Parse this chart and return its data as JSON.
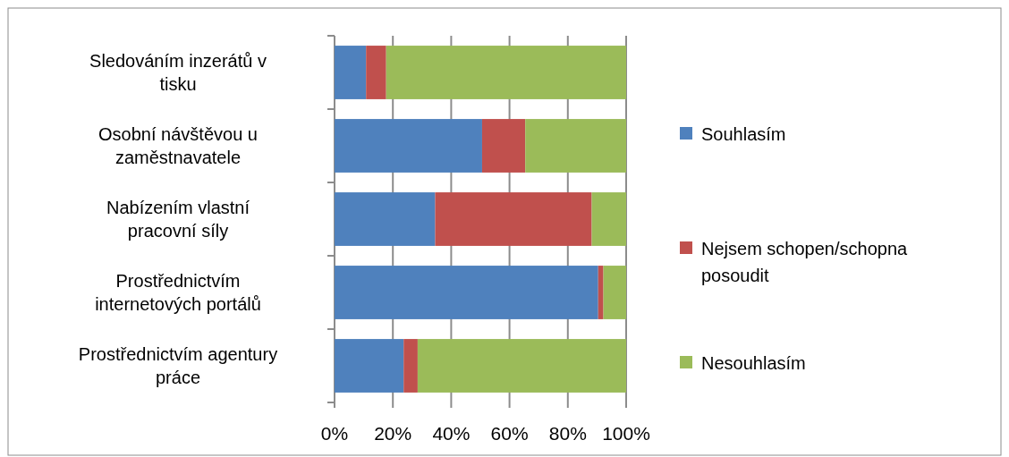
{
  "chart_data": {
    "type": "bar",
    "orientation": "horizontal",
    "stacked": true,
    "categories": [
      "Sledováním inzerátů v tisku",
      "Osobní návštěvou u zaměstnavatele",
      "Nabízením vlastní pracovní síly",
      "Prostřednictvím internetových portálů",
      "Prostřednictvím agentury práce"
    ],
    "series": [
      {
        "name": "Souhlasím",
        "color": "#4f81bd",
        "values": [
          10.8,
          50.6,
          34.5,
          90.4,
          23.7
        ]
      },
      {
        "name": "Nejsem schopen/schopna posoudit",
        "color": "#c0504d",
        "values": [
          6.9,
          14.8,
          53.7,
          1.8,
          4.8
        ]
      },
      {
        "name": "Nesouhlasím",
        "color": "#9bbb59",
        "values": [
          82.3,
          34.6,
          11.8,
          7.8,
          71.5
        ]
      }
    ],
    "xlim": [
      0,
      100
    ],
    "xticks": [
      {
        "value": 0,
        "label": "0%"
      },
      {
        "value": 20,
        "label": "20%"
      },
      {
        "value": 40,
        "label": "40%"
      },
      {
        "value": 60,
        "label": "60%"
      },
      {
        "value": 80,
        "label": "80%"
      },
      {
        "value": 100,
        "label": "100%"
      }
    ],
    "grid": "x",
    "legend": "right"
  }
}
